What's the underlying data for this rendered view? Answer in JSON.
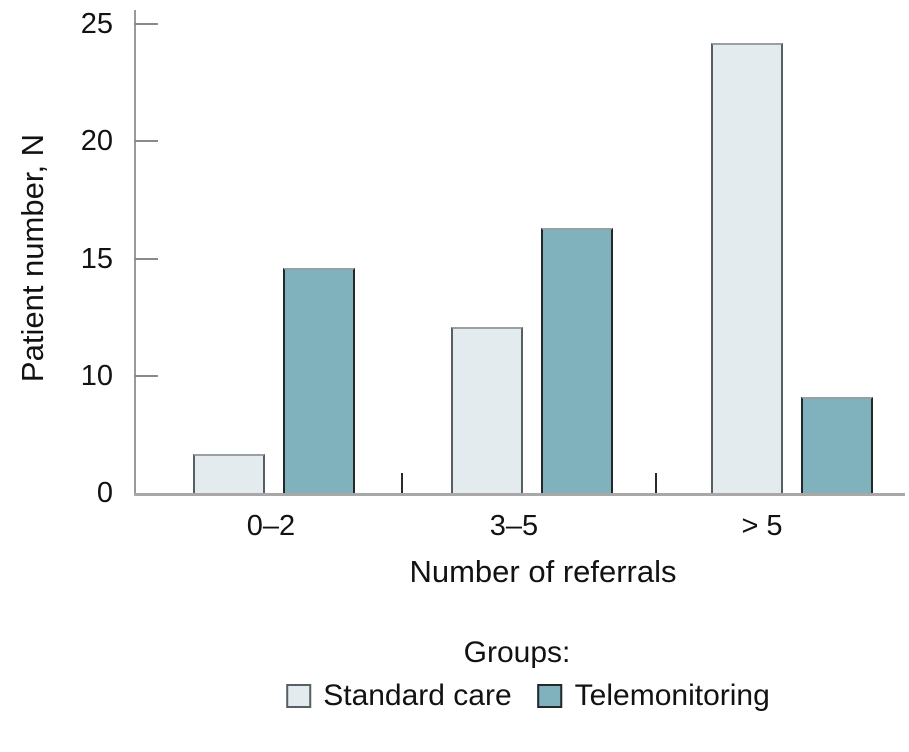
{
  "chart_data": {
    "type": "bar",
    "title": "",
    "xlabel": "Number of referrals",
    "ylabel": "Patient number, N",
    "legend_title": "Groups:",
    "legend_position": "bottom",
    "grid": "off",
    "categories": [
      "0–2",
      "3–5",
      "> 5"
    ],
    "series": [
      {
        "name": "Standard care",
        "values": [
          3.3,
          12.1,
          24.2
        ],
        "fill": "#e3ebee",
        "border": "#565f63"
      },
      {
        "name": "Telemonitoring",
        "values": [
          14.6,
          16.3,
          8.2
        ],
        "fill": "#7fb2bc",
        "border": "#23282b"
      }
    ],
    "y_ticks": [
      0,
      10,
      15,
      20,
      25
    ],
    "ylim": [
      0,
      25
    ],
    "axis_note": "y-axis ticks are drawn equally spaced (0, 10, 15, 20, 25); bars read piecewise between adjacent ticks"
  },
  "colors": {
    "background": "#ffffff",
    "axis_line": "#999999",
    "tick_mark": "#8a8a8a",
    "baseline": "#a8a8a8",
    "divider": "#2a2a2a",
    "bar_top_edge": "#98a0a4",
    "text": "#121212"
  }
}
